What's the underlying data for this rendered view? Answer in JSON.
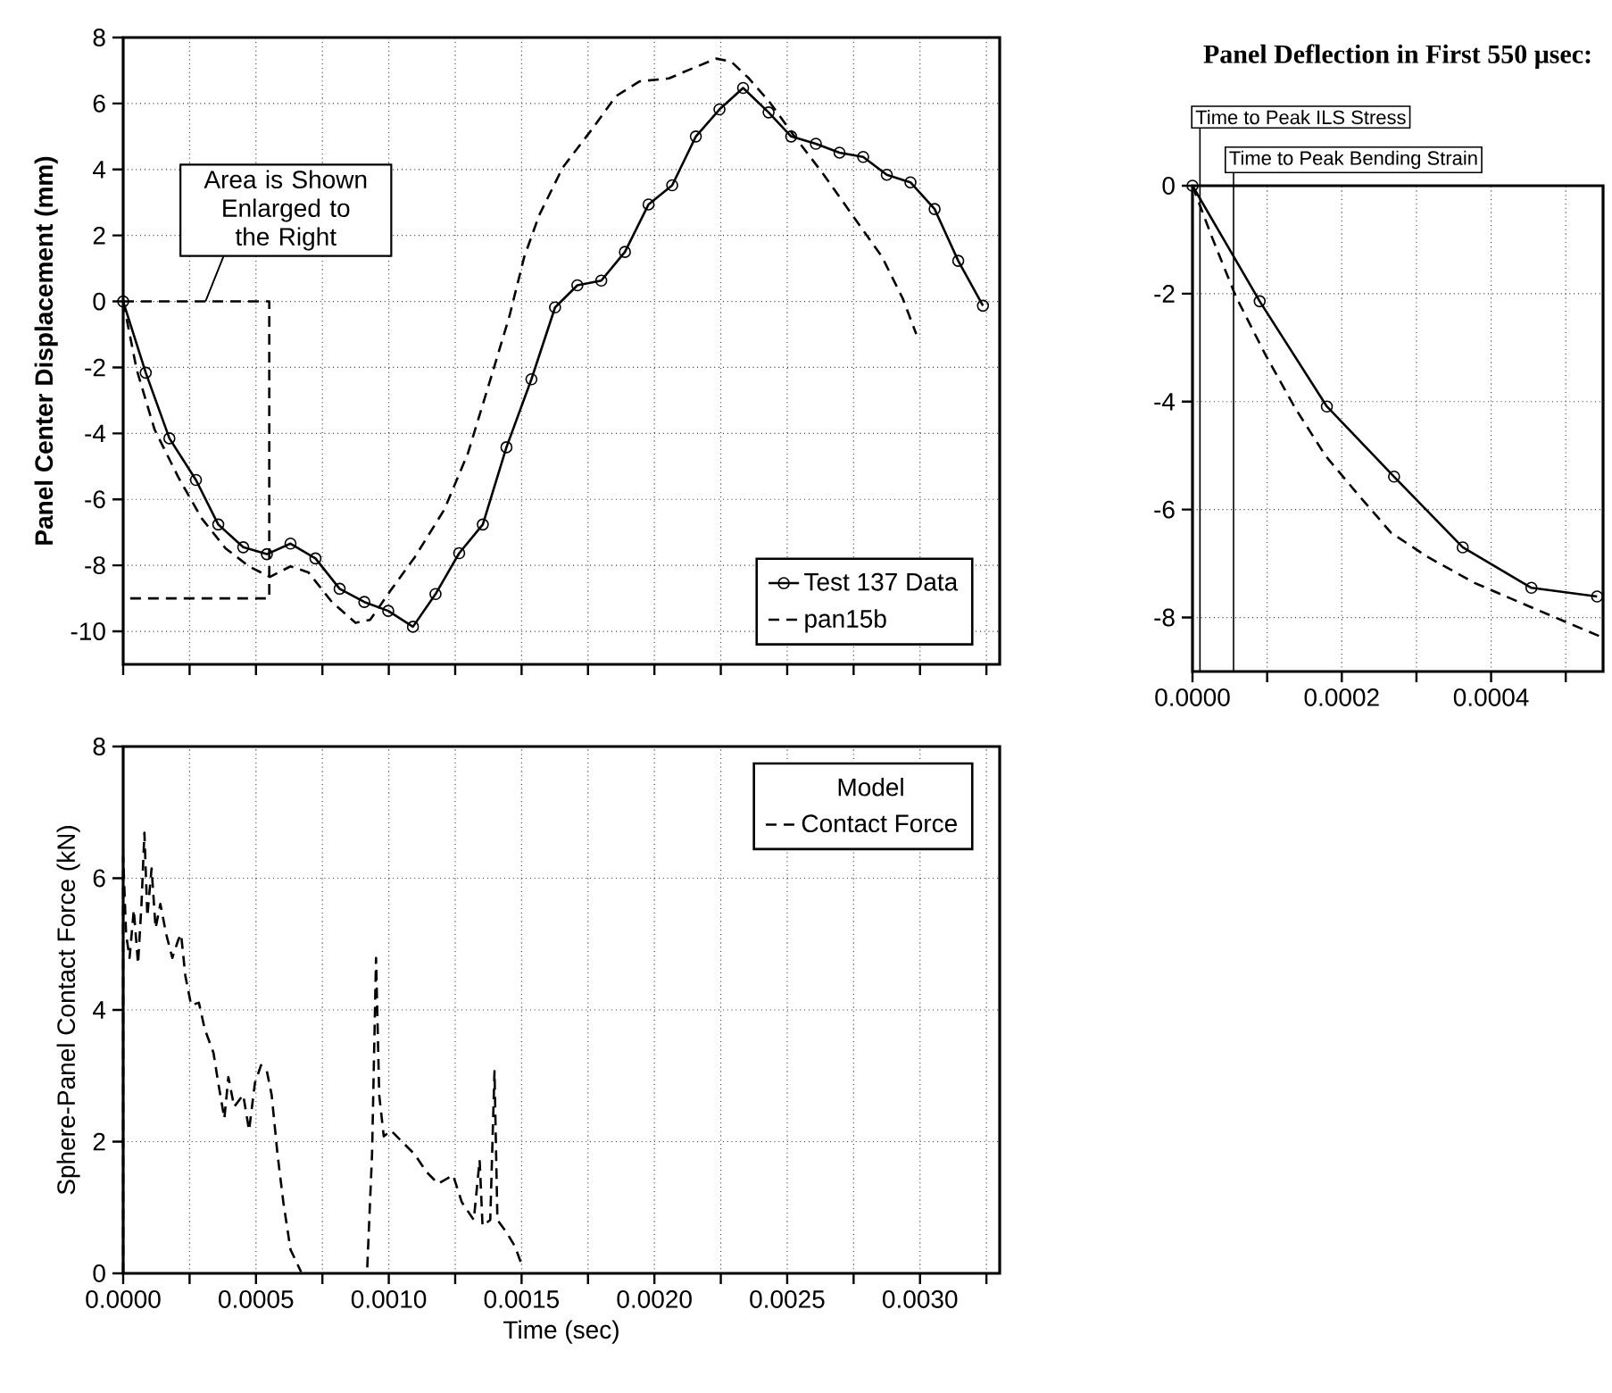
{
  "chart_data": [
    {
      "type": "line",
      "ylabel": "Panel Center Displacement (mm)",
      "xlim": [
        0,
        0.0033
      ],
      "ylim": [
        -11,
        8
      ],
      "xticks": [
        {
          "value": 0,
          "label": null
        },
        {
          "value": 0.00025,
          "label": null
        },
        {
          "value": 0.0005,
          "label": null
        },
        {
          "value": 0.00075,
          "label": null
        },
        {
          "value": 0.001,
          "label": null
        },
        {
          "value": 0.00125,
          "label": null
        },
        {
          "value": 0.0015,
          "label": null
        },
        {
          "value": 0.00175,
          "label": null
        },
        {
          "value": 0.002,
          "label": null
        },
        {
          "value": 0.00225,
          "label": null
        },
        {
          "value": 0.0025,
          "label": null
        },
        {
          "value": 0.00275,
          "label": null
        },
        {
          "value": 0.003,
          "label": null
        },
        {
          "value": 0.00325,
          "label": null
        }
      ],
      "yticks": [
        -10,
        -8,
        -6,
        -4,
        -2,
        0,
        2,
        4,
        6,
        8
      ],
      "tick_labels": "y",
      "grid": true,
      "legend": "bottom right",
      "annotations": [
        {
          "text": "Area is Shown Enlarged to the Right",
          "x": 0.00031,
          "y": 0
        }
      ],
      "series": [
        {
          "name": "Test 137 Data",
          "color": "#000000",
          "marker": "circle",
          "line_style": "solid",
          "x": [
            0,
            8.5e-05,
            0.000174,
            0.000274,
            0.000358,
            0.000452,
            0.000541,
            0.00063,
            0.000724,
            0.000815,
            0.000908,
            0.000998,
            0.001091,
            0.001176,
            0.001265,
            0.001354,
            0.001443,
            0.001537,
            0.001626,
            0.00171,
            0.0018,
            0.001889,
            0.001978,
            0.002067,
            0.002156,
            0.002245,
            0.002334,
            0.00243,
            0.002515,
            0.002608,
            0.002697,
            0.002786,
            0.002875,
            0.002964,
            0.003055,
            0.003144,
            0.003237
          ],
          "values": [
            0,
            -2.16,
            -4.15,
            -5.41,
            -6.76,
            -7.45,
            -7.66,
            -7.34,
            -7.79,
            -8.71,
            -9.11,
            -9.38,
            -9.86,
            -8.87,
            -7.63,
            -6.76,
            -4.42,
            -2.36,
            -0.18,
            0.49,
            0.63,
            1.5,
            2.94,
            3.52,
            5.0,
            5.82,
            6.47,
            5.73,
            5.0,
            4.78,
            4.51,
            4.38,
            3.84,
            3.61,
            2.8,
            1.23,
            -0.13
          ]
        },
        {
          "color": "#000000",
          "marker": "none",
          "line_style": "dashed",
          "x": [
            0,
            0.00055,
            0.00055,
            0
          ],
          "values": [
            0,
            0,
            -9,
            -9
          ]
        },
        {
          "name": "pan15b",
          "color": "#000000",
          "marker": "none",
          "line_style": "dashed",
          "x": [
            0,
            5.1e-05,
            0.000118,
            0.000207,
            0.000296,
            0.000385,
            0.000474,
            0.000552,
            0.00063,
            0.000697,
            0.000786,
            0.000875,
            0.00093,
            0.001008,
            0.001098,
            0.001209,
            0.001298,
            0.001387,
            0.001454,
            0.00151,
            0.001566,
            0.001655,
            0.001766,
            0.001855,
            0.001944,
            0.002055,
            0.002133,
            0.002233,
            0.002289,
            0.002356,
            0.002434,
            0.002523,
            0.002634,
            0.002746,
            0.002857,
            0.002935,
            0.002986
          ],
          "values": [
            0,
            -2.07,
            -3.88,
            -5.32,
            -6.58,
            -7.48,
            -8.03,
            -8.35,
            -8.03,
            -8.21,
            -9.11,
            -9.74,
            -9.65,
            -8.75,
            -7.75,
            -6.31,
            -4.6,
            -2.25,
            -0.45,
            1.35,
            2.61,
            4.06,
            5.23,
            6.22,
            6.67,
            6.76,
            7.03,
            7.36,
            7.27,
            6.76,
            6.04,
            5.05,
            3.88,
            2.61,
            1.35,
            0.09,
            -0.99
          ]
        }
      ]
    },
    {
      "type": "line",
      "title": "Panel Deflection in First 550 μsec:",
      "xlim": [
        0,
        0.00055
      ],
      "ylim": [
        -9,
        0
      ],
      "xticks": [
        {
          "value": 0,
          "label": "0.0000"
        },
        {
          "value": 0.0001,
          "label": null
        },
        {
          "value": 0.0002,
          "label": "0.0002"
        },
        {
          "value": 0.0003,
          "label": null
        },
        {
          "value": 0.0004,
          "label": "0.0004"
        },
        {
          "value": 0.0005,
          "label": null
        }
      ],
      "yticks": [
        -8,
        -6,
        -4,
        -2,
        0
      ],
      "grid": true,
      "ref_lines": [
        {
          "axis": "x",
          "value": 1e-05,
          "label": "Time to Peak ILS Stress"
        },
        {
          "axis": "x",
          "value": 5.5e-05,
          "label": "Time to Peak Bending Strain"
        }
      ],
      "series": [
        {
          "color": "#000000",
          "marker": "circle",
          "line_style": "solid",
          "x": [
            0,
            9e-05,
            0.00018,
            0.00027,
            0.000362,
            0.000454,
            0.000542
          ],
          "values": [
            0,
            -2.14,
            -4.09,
            -5.39,
            -6.7,
            -7.45,
            -7.61
          ]
        },
        {
          "color": "#000000",
          "marker": "none",
          "line_style": "dashed",
          "x": [
            0,
            2.6e-05,
            5.8e-05,
            9.8e-05,
            0.000138,
            0.000178,
            0.000218,
            0.000266,
            0.000314,
            0.000378,
            0.000442,
            0.000498,
            0.000546
          ],
          "values": [
            0,
            -0.95,
            -2.05,
            -3.14,
            -4.13,
            -5.0,
            -5.66,
            -6.43,
            -6.87,
            -7.36,
            -7.74,
            -8.07,
            -8.35
          ]
        }
      ]
    },
    {
      "type": "line",
      "xlabel": "Time (sec)",
      "ylabel": "Sphere-Panel Contact Force (kN)",
      "xlim": [
        0,
        0.0033
      ],
      "ylim": [
        0,
        8
      ],
      "xticks": [
        {
          "value": 0,
          "label": "0.0000"
        },
        {
          "value": 0.00025,
          "label": null
        },
        {
          "value": 0.0005,
          "label": "0.0005"
        },
        {
          "value": 0.00075,
          "label": null
        },
        {
          "value": 0.001,
          "label": "0.0010"
        },
        {
          "value": 0.00125,
          "label": null
        },
        {
          "value": 0.0015,
          "label": "0.0015"
        },
        {
          "value": 0.00175,
          "label": null
        },
        {
          "value": 0.002,
          "label": "0.0020"
        },
        {
          "value": 0.00225,
          "label": null
        },
        {
          "value": 0.0025,
          "label": "0.0025"
        },
        {
          "value": 0.00275,
          "label": null
        },
        {
          "value": 0.003,
          "label": "0.0030"
        },
        {
          "value": 0.00325,
          "label": null
        }
      ],
      "yticks": [
        0,
        2,
        4,
        6,
        8
      ],
      "grid": true,
      "legend": "top right",
      "legend_title": "Model",
      "series": [
        {
          "name": "Contact Force",
          "color": "#000000",
          "marker": "none",
          "line_style": "dashed",
          "x": [
            0,
            0,
            1.1e-05,
            2.4e-05,
            4e-05,
            5.6e-05,
            6.9e-05,
            8e-05,
            9.1e-05,
            0.000107,
            0.000122,
            0.00014,
            0.000162,
            0.000185,
            0.000207,
            0.000218,
            0.000234,
            0.000256,
            0.000285,
            0.000307,
            0.00034,
            0.000358,
            0.000381,
            0.000396,
            0.000418,
            0.000452,
            0.000474,
            0.000496,
            0.000519,
            0.000541,
            0.000559,
            0.000581,
            0.000603,
            0.00063,
            0.00067,
            0.0008,
            0.000919,
            0.000937,
            0.000952,
            0.000964,
            0.000981,
            0.001008,
            0.001052,
            0.001097,
            0.001142,
            0.001186,
            0.001242,
            0.001275,
            0.00132,
            0.001342,
            0.001353,
            0.001382,
            0.001398,
            0.001409,
            0.001442,
            0.001475,
            0.001504
          ],
          "values": [
            0,
            6.33,
            5.15,
            4.79,
            5.52,
            4.7,
            5.61,
            6.69,
            5.42,
            6.15,
            5.24,
            5.61,
            5.15,
            4.79,
            5.06,
            5.15,
            4.52,
            4.07,
            4.11,
            3.71,
            3.35,
            2.89,
            2.35,
            2.98,
            2.53,
            2.71,
            2.17,
            2.89,
            3.16,
            3.07,
            2.71,
            1.81,
            1.08,
            0.36,
            0.02,
            null,
            0.09,
            1.81,
            4.79,
            2.71,
            2.08,
            2.17,
            1.99,
            1.81,
            1.54,
            1.36,
            1.49,
            1.08,
            0.81,
            1.72,
            0.72,
            0.81,
            3.07,
            0.81,
            0.63,
            0.41,
            0.09
          ]
        }
      ]
    }
  ]
}
